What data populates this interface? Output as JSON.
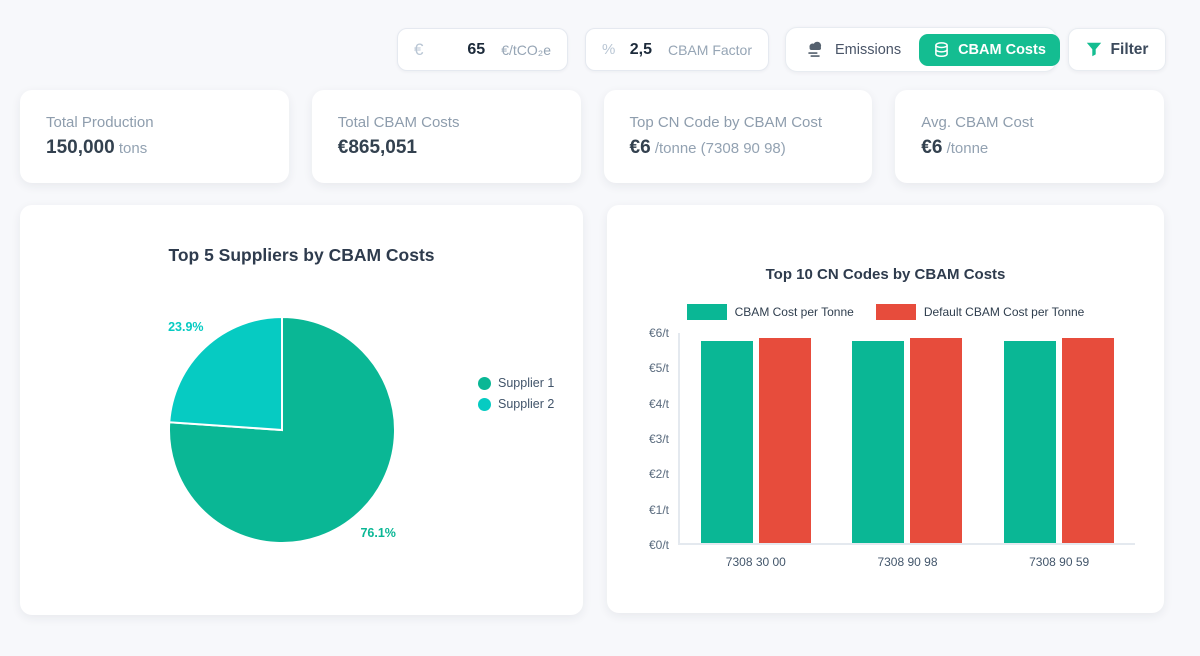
{
  "colors": {
    "background": "#f7f8fb",
    "accent_green": "#14bd91",
    "chart_green": "#0ab795",
    "chart_cyan": "#06cbc2",
    "chart_red": "#e74c3c",
    "text_dark": "#2e3b4d",
    "text_muted": "#8e9dad"
  },
  "toolbar": {
    "carbon_price": {
      "icon": "euro-sign",
      "value": "65",
      "unit": "€/tCO₂e"
    },
    "cbam_factor": {
      "icon": "percent-sign",
      "value": "2,5",
      "label": "CBAM Factor"
    },
    "view_toggle": {
      "options": [
        {
          "label": "Emissions",
          "icon": "smog",
          "active": false
        },
        {
          "label": "CBAM Costs",
          "icon": "coins",
          "active": true
        }
      ]
    },
    "filter": {
      "label": "Filter",
      "icon": "funnel"
    }
  },
  "stats": [
    {
      "label": "Total Production",
      "value": "150,000",
      "unit": "tons"
    },
    {
      "label": "Total CBAM Costs",
      "value": "€865,051",
      "unit": ""
    },
    {
      "label": "Top CN Code by CBAM Cost",
      "value": "€6",
      "unit": "/tonne (7308 90 98)"
    },
    {
      "label": "Avg. CBAM Cost",
      "value": "€6",
      "unit": "/tonne"
    }
  ],
  "chart_data": [
    {
      "type": "pie",
      "title": "Top 5 Suppliers by CBAM Costs",
      "labels": [
        "Supplier 1",
        "Supplier 2"
      ],
      "values": [
        76.1,
        23.9
      ],
      "value_labels": [
        "76.1%",
        "23.9%"
      ],
      "colors": [
        "#0ab795",
        "#06cbc2"
      ],
      "start_angle_deg": -90,
      "direction": "clockwise",
      "slice_border_color": "#ffffff",
      "legend_position": "right"
    },
    {
      "type": "bar",
      "title": "Top 10 CN Codes by CBAM Costs",
      "categories": [
        "7308 30 00",
        "7308 90 98",
        "7308 90 59"
      ],
      "series": [
        {
          "name": "CBAM Cost per Tonne",
          "color": "#0ab795",
          "values": [
            5.76,
            5.76,
            5.77
          ]
        },
        {
          "name": "Default CBAM Cost per Tonne",
          "color": "#e74c3c",
          "values": [
            5.85,
            5.85,
            5.85
          ]
        }
      ],
      "ylim": [
        0,
        6
      ],
      "ytick_labels": [
        "€0/t",
        "€1/t",
        "€2/t",
        "€3/t",
        "€4/t",
        "€5/t",
        "€6/t"
      ],
      "grid": false,
      "legend_position": "top"
    }
  ]
}
